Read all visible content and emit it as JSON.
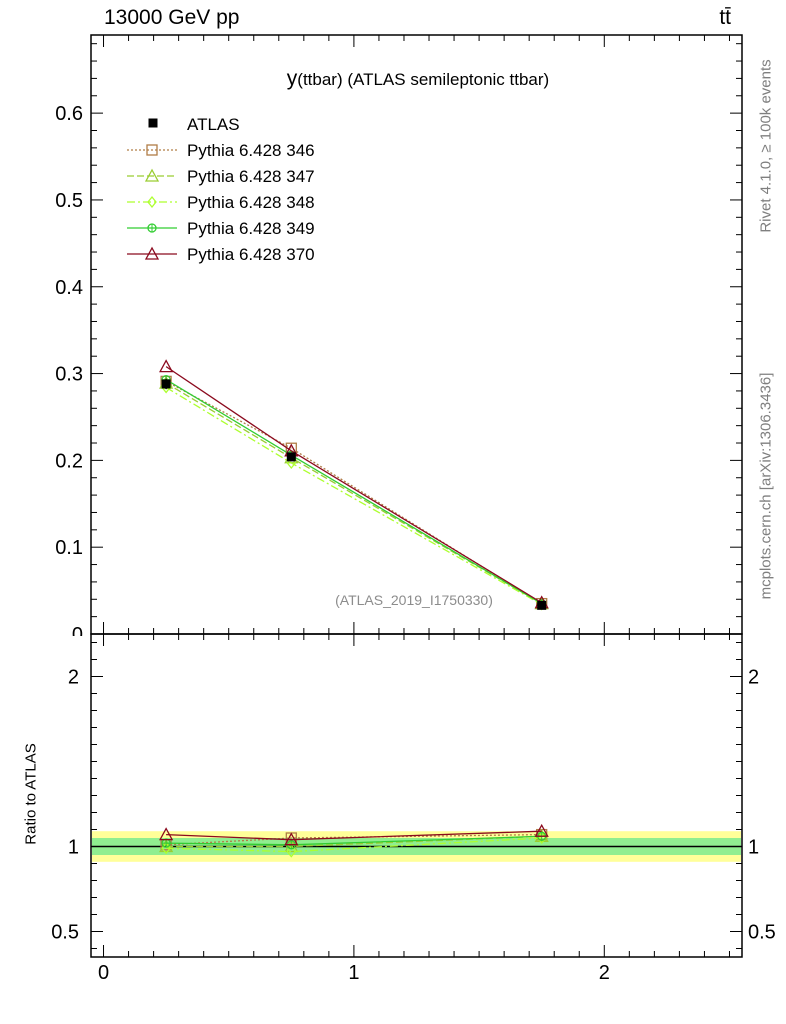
{
  "header": {
    "energy": "13000 GeV pp",
    "process": "tt̄"
  },
  "side": {
    "rivet": "Rivet 4.1.0, ≥ 100k events",
    "mcplots": "mcplots.cern.ch [arXiv:1306.3436]"
  },
  "chart_data": {
    "type": "line",
    "title": "y(ttbar) (ATLAS semileptonic ttbar)",
    "title_prefix": "y",
    "title_rest": "(ttbar) (ATLAS semileptonic ttbar)",
    "analysis_id": "(ATLAS_2019_I1750330)",
    "x": [
      0.25,
      0.75,
      1.75
    ],
    "xlim": [
      -0.05,
      2.55
    ],
    "x_ticks": [
      0,
      1,
      2
    ],
    "main": {
      "ylim": [
        0,
        0.69
      ],
      "y_ticks": [
        0.1,
        0.2,
        0.3,
        0.4,
        0.5,
        0.6
      ],
      "y_tick_labels": [
        "0.1",
        "0.2",
        "0.3",
        "0.4",
        "0.5",
        "0.6"
      ],
      "y_zero_label": "0"
    },
    "ratio": {
      "ylabel": "Ratio to ATLAS",
      "ylim": [
        0.35,
        2.25
      ],
      "y_ticks": [
        0.5,
        1,
        2
      ],
      "y_tick_labels": [
        "0.5",
        "1",
        "2"
      ],
      "band_inner": 0.05,
      "band_outer": 0.09,
      "band_inner_color": "#90ee90",
      "band_outer_color": "#ffff99"
    },
    "data": {
      "name": "ATLAS",
      "values": [
        0.288,
        0.204,
        0.033
      ],
      "errors": [
        0.006,
        0.005,
        0.002
      ],
      "color": "#000000"
    },
    "series": [
      {
        "name": "Pythia 6.428 346",
        "values": [
          0.291,
          0.214,
          0.035
        ],
        "ratio": [
          1.01,
          1.05,
          1.07
        ],
        "color": "#b07d46",
        "dash": "2,2",
        "marker": "square"
      },
      {
        "name": "Pythia 6.428 347",
        "values": [
          0.289,
          0.203,
          0.035
        ],
        "ratio": [
          1.0,
          1.0,
          1.06
        ],
        "color": "#9acd32",
        "dash": "7,3",
        "marker": "triangle"
      },
      {
        "name": "Pythia 6.428 348",
        "values": [
          0.284,
          0.197,
          0.034
        ],
        "ratio": [
          0.99,
          0.97,
          1.05
        ],
        "color": "#adff2f",
        "dash": "8,3,2,3",
        "marker": "diamond"
      },
      {
        "name": "Pythia 6.428 349",
        "values": [
          0.293,
          0.206,
          0.035
        ],
        "ratio": [
          1.02,
          1.01,
          1.06
        ],
        "color": "#32cd32",
        "dash": "",
        "marker": "cross-circle"
      },
      {
        "name": "Pythia 6.428 370",
        "values": [
          0.308,
          0.211,
          0.036
        ],
        "ratio": [
          1.07,
          1.04,
          1.09
        ],
        "color": "#8b0a1e",
        "dash": "",
        "marker": "triangle"
      }
    ]
  }
}
